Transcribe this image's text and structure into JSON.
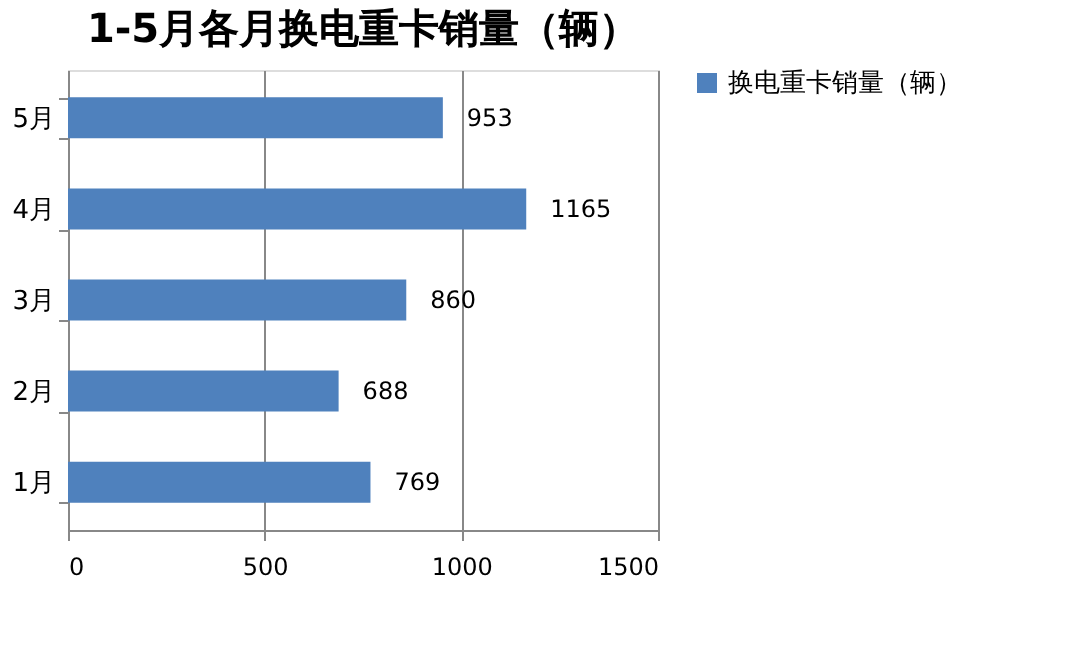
{
  "chart_data": {
    "type": "bar",
    "orientation": "horizontal",
    "title": "1-5月各月换电重卡销量（辆）",
    "categories": [
      "5月",
      "4月",
      "3月",
      "2月",
      "1月"
    ],
    "series": [
      {
        "name": "换电重卡销量（辆）",
        "color": "#4f81bd",
        "values": [
          953,
          1165,
          860,
          688,
          769
        ]
      }
    ],
    "xlim": [
      0,
      1500
    ],
    "xticks": [
      0,
      500,
      1000,
      1500
    ],
    "grid": "x",
    "legend": "right",
    "data_labels": true
  }
}
